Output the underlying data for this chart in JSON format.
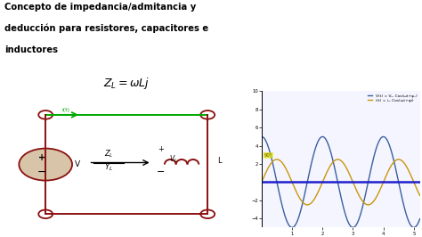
{
  "title_line1": "Concepto de impedancia/admitancia y",
  "title_line2": "deducción para resistores, capacitores e",
  "title_line3": "inductores",
  "formula": "$Z_L = \\omega Lj$",
  "bg_color": "#ffffff",
  "text_color": "#000000",
  "xlim": [
    0,
    5.2
  ],
  "ylim": [
    -5,
    10
  ],
  "x_ticks": [
    1,
    2,
    3,
    4,
    5
  ],
  "y_ticks": [
    -4,
    -2,
    2,
    4,
    6,
    8,
    10
  ],
  "voltage_color": "#3a5fa0",
  "current_color": "#c8960a",
  "axis_color": "#2020cc",
  "legend_v": "V(t) = Vₘ Cos(ωt+φᵥ)",
  "legend_i": "i(t) = iₘ Cos(ωt+φi)",
  "phase_label": "90°",
  "green_color": "#00aa00",
  "dark_red": "#8b1010"
}
